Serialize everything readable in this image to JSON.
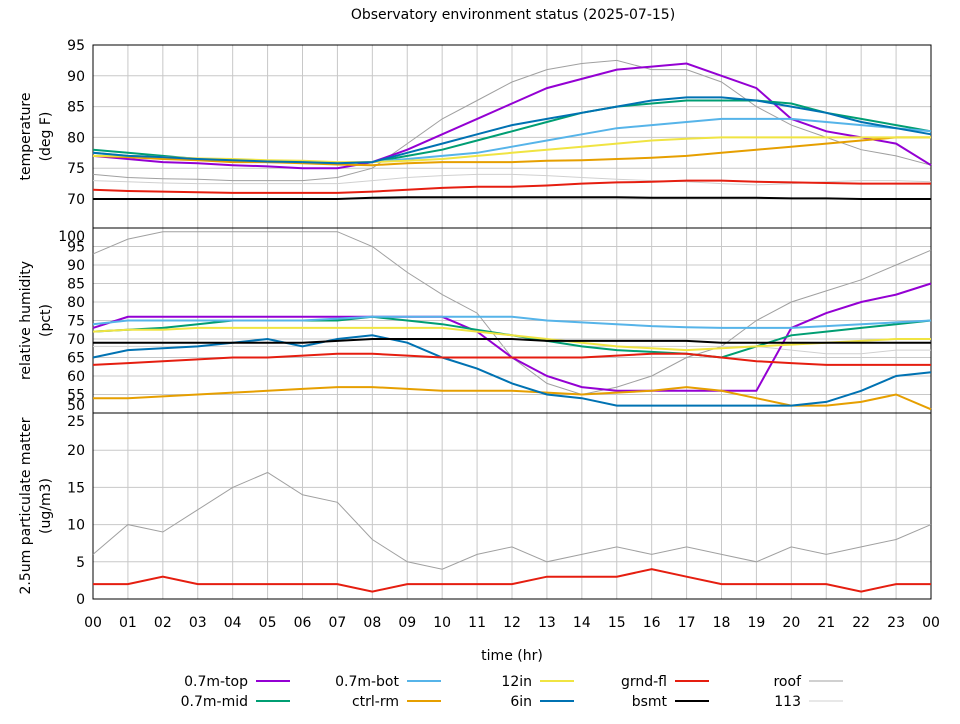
{
  "chart_data": {
    "title": "Observatory environment status (2025-07-15)",
    "xlabel": "time (hr)",
    "x_ticks": [
      "00",
      "01",
      "02",
      "03",
      "04",
      "05",
      "06",
      "07",
      "08",
      "09",
      "10",
      "11",
      "12",
      "13",
      "14",
      "15",
      "16",
      "17",
      "18",
      "19",
      "20",
      "21",
      "22",
      "23",
      "00"
    ],
    "xlim": [
      0,
      24
    ],
    "grid": true,
    "legend_placement": "bottom",
    "x": [
      0,
      1,
      2,
      3,
      4,
      5,
      6,
      7,
      8,
      9,
      10,
      11,
      12,
      13,
      14,
      15,
      16,
      17,
      18,
      19,
      20,
      21,
      22,
      23,
      24
    ],
    "legend": [
      {
        "name": "0.7m-top",
        "color": "#9400d3"
      },
      {
        "name": "0.7m-mid",
        "color": "#009e73"
      },
      {
        "name": "0.7m-bot",
        "color": "#56b4e9"
      },
      {
        "name": "ctrl-rm",
        "color": "#e69f00"
      },
      {
        "name": "12in",
        "color": "#f0e442"
      },
      {
        "name": "6in",
        "color": "#0072b2"
      },
      {
        "name": "grnd-fl",
        "color": "#e51e10"
      },
      {
        "name": "bsmt",
        "color": "#000000"
      },
      {
        "name": "roof",
        "color": "#a0a0a0"
      },
      {
        "name": "113",
        "color": "#d0d0d0"
      }
    ],
    "panels": [
      {
        "type": "line",
        "ylabel": [
          "temperature",
          "(deg F)"
        ],
        "ylim": [
          65.3,
          95
        ],
        "y_ticks": [
          70,
          75,
          80,
          85,
          90,
          95
        ],
        "series": [
          {
            "name": "roof",
            "values": [
              74,
              73.5,
              73.3,
              73.2,
              73,
              73,
              73,
              73.5,
              75,
              79,
              83,
              86,
              89,
              91,
              92,
              92.5,
              91,
              91,
              89,
              85,
              82,
              80,
              78,
              77,
              75.5
            ]
          },
          {
            "name": "113",
            "values": [
              73,
              72.8,
              72.6,
              72.5,
              72.5,
              72.5,
              72.5,
              72.5,
              73,
              73.5,
              73.8,
              74,
              74,
              73.8,
              73.5,
              73.2,
              73,
              72.8,
              72.5,
              72.3,
              72.5,
              72.8,
              73,
              73,
              72.8
            ]
          },
          {
            "name": "0.7m-top",
            "values": [
              77,
              76.5,
              76,
              75.8,
              75.5,
              75.3,
              75,
              75,
              76,
              78,
              80.5,
              83,
              85.5,
              88,
              89.5,
              91,
              91.5,
              92,
              90,
              88,
              83,
              81,
              80,
              79,
              75.5
            ]
          },
          {
            "name": "0.7m-mid",
            "values": [
              78,
              77.5,
              77,
              76.5,
              76.3,
              76,
              76,
              75.8,
              76,
              77,
              78,
              79.5,
              81,
              82.5,
              84,
              85,
              85.5,
              86,
              86,
              86,
              85.5,
              84,
              83,
              82,
              81
            ]
          },
          {
            "name": "0.7m-bot",
            "values": [
              77.5,
              77,
              76.8,
              76.5,
              76.3,
              76.1,
              76,
              75.9,
              76,
              76.5,
              77,
              77.5,
              78.5,
              79.5,
              80.5,
              81.5,
              82,
              82.5,
              83,
              83,
              83,
              82.5,
              82,
              81.5,
              81
            ]
          },
          {
            "name": "ctrl-rm",
            "values": [
              77,
              76.8,
              76.5,
              76.3,
              76,
              76,
              75.8,
              75.6,
              75.5,
              75.8,
              76,
              76,
              76,
              76.2,
              76.3,
              76.5,
              76.7,
              77,
              77.5,
              78,
              78.5,
              79,
              79.5,
              80,
              80
            ]
          },
          {
            "name": "12in",
            "values": [
              77,
              77,
              76.8,
              76.6,
              76.5,
              76.3,
              76.2,
              76,
              76,
              76.2,
              76.5,
              77,
              77.5,
              78,
              78.5,
              79,
              79.5,
              79.8,
              80,
              80,
              80,
              80,
              80,
              80,
              80
            ]
          },
          {
            "name": "6in",
            "values": [
              77.5,
              77,
              76.8,
              76.5,
              76.3,
              76.1,
              76,
              75.8,
              76,
              77.5,
              79,
              80.5,
              82,
              83,
              84,
              85,
              86,
              86.5,
              86.5,
              86,
              85,
              84,
              82.5,
              81.5,
              80.5
            ]
          },
          {
            "name": "grnd-fl",
            "values": [
              71.5,
              71.3,
              71.2,
              71.1,
              71,
              71,
              71,
              71,
              71.2,
              71.5,
              71.8,
              72,
              72,
              72.2,
              72.5,
              72.7,
              72.8,
              73,
              73,
              72.8,
              72.7,
              72.6,
              72.5,
              72.5,
              72.5
            ]
          },
          {
            "name": "bsmt",
            "values": [
              70,
              70,
              70,
              70,
              70,
              70,
              70,
              70,
              70.2,
              70.3,
              70.3,
              70.3,
              70.3,
              70.3,
              70.3,
              70.3,
              70.2,
              70.2,
              70.2,
              70.2,
              70.1,
              70.1,
              70,
              70,
              70
            ]
          }
        ]
      },
      {
        "type": "line",
        "ylabel": [
          "relative humidity",
          "(pct)"
        ],
        "ylim": [
          50,
          100
        ],
        "y_ticks": [
          50,
          55,
          60,
          65,
          70,
          75,
          80,
          85,
          90,
          95,
          100
        ],
        "series": [
          {
            "name": "roof",
            "values": [
              93,
              97,
              99,
              99,
              99,
              99,
              99,
              99,
              95,
              88,
              82,
              77,
              65,
              58,
              55,
              57,
              60,
              65,
              68,
              75,
              80,
              83,
              86,
              90,
              94
            ]
          },
          {
            "name": "113",
            "values": [
              68,
              68,
              68,
              68,
              68,
              68,
              68,
              68,
              68,
              68,
              68,
              68,
              68,
              68,
              68,
              68,
              68,
              68,
              68,
              68,
              67,
              66,
              66,
              67,
              67
            ]
          },
          {
            "name": "0.7m-top",
            "values": [
              73,
              76,
              76,
              76,
              76,
              76,
              76,
              76,
              76,
              76,
              76,
              72,
              65,
              60,
              57,
              56,
              56,
              56,
              56,
              56,
              73,
              77,
              80,
              82,
              85
            ]
          },
          {
            "name": "0.7m-mid",
            "values": [
              72,
              72.5,
              73,
              74,
              75,
              75,
              75,
              75,
              76,
              75,
              74,
              72.5,
              71,
              69.5,
              68,
              67,
              66.5,
              66,
              65,
              68,
              71,
              72,
              73,
              74,
              75
            ]
          },
          {
            "name": "0.7m-bot",
            "values": [
              74,
              75,
              75,
              75,
              75,
              75,
              75,
              75.5,
              76,
              76,
              76,
              76,
              76,
              75,
              74.5,
              74,
              73.5,
              73.2,
              73,
              73,
              73,
              73.5,
              74,
              74.5,
              75
            ]
          },
          {
            "name": "ctrl-rm",
            "values": [
              54,
              54,
              54.5,
              55,
              55.5,
              56,
              56.5,
              57,
              57,
              56.5,
              56,
              56,
              56,
              55.5,
              55,
              55.5,
              56,
              57,
              56,
              54,
              52,
              52,
              53,
              55,
              51
            ]
          },
          {
            "name": "12in",
            "values": [
              72,
              72.5,
              72.5,
              73,
              73,
              73,
              73,
              73,
              73,
              73,
              73,
              72,
              71,
              70,
              69,
              68,
              67.5,
              67,
              67.5,
              68,
              68.5,
              69,
              69.5,
              70,
              70
            ]
          },
          {
            "name": "6in",
            "values": [
              65,
              67,
              67.5,
              68,
              69,
              70,
              68,
              70,
              71,
              69,
              65,
              62,
              58,
              55,
              54,
              52,
              52,
              52,
              52,
              52,
              52,
              53,
              56,
              60,
              61
            ]
          },
          {
            "name": "grnd-fl",
            "values": [
              63,
              63.5,
              64,
              64.5,
              65,
              65,
              65.5,
              66,
              66,
              65.5,
              65,
              65,
              65,
              65,
              65,
              65.5,
              66,
              66,
              65,
              64,
              63.5,
              63,
              63,
              63,
              63
            ]
          },
          {
            "name": "bsmt",
            "values": [
              69,
              69,
              69,
              69,
              69,
              69,
              69,
              69.5,
              70,
              70,
              70,
              70,
              70,
              69.5,
              69.5,
              69.5,
              69.5,
              69.5,
              69,
              69,
              69,
              69,
              69,
              69,
              69
            ]
          }
        ]
      },
      {
        "type": "line",
        "ylabel": [
          "2.5um particulate matter",
          "(ug/m3)"
        ],
        "ylim": [
          0,
          25
        ],
        "y_ticks": [
          0,
          5,
          10,
          15,
          20,
          25
        ],
        "series": [
          {
            "name": "roof",
            "values": [
              6,
              10,
              9,
              12,
              15,
              17,
              14,
              13,
              8,
              5,
              4,
              6,
              7,
              5,
              6,
              7,
              6,
              7,
              6,
              5,
              7,
              6,
              7,
              8,
              10
            ]
          },
          {
            "name": "grnd-fl",
            "values": [
              2,
              2,
              3,
              2,
              2,
              2,
              2,
              2,
              1,
              2,
              2,
              2,
              2,
              3,
              3,
              3,
              4,
              3,
              2,
              2,
              2,
              2,
              1,
              2,
              2
            ]
          }
        ]
      }
    ]
  }
}
